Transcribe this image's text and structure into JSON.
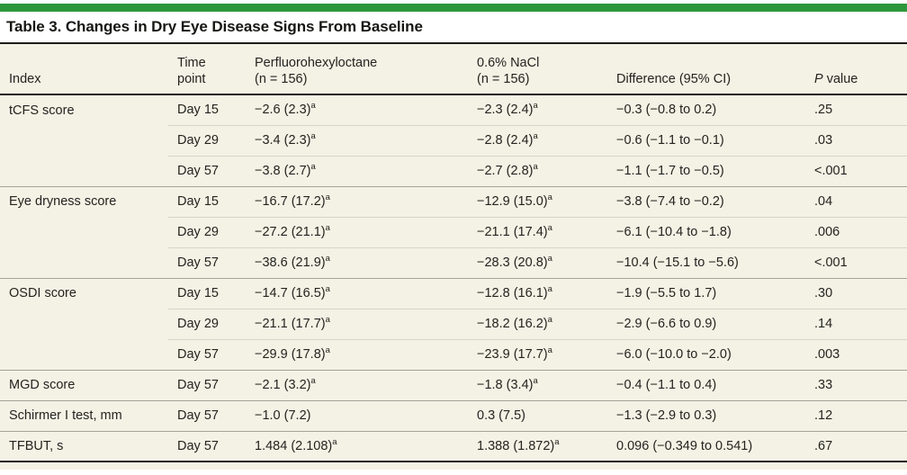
{
  "colors": {
    "accent_green": "#2e973c",
    "table_bg": "#f4f1e5",
    "rule_dark": "#1c1c1c",
    "line_light": "#d9d4c3",
    "line_group": "#a3a396",
    "text": "#24241f"
  },
  "title": "Table 3. Changes in Dry Eye Disease Signs From Baseline",
  "table": {
    "headers": [
      {
        "id": "index",
        "lines": [
          "Index"
        ]
      },
      {
        "id": "time-point",
        "lines": [
          "Time",
          "point"
        ]
      },
      {
        "id": "perfluorohexyloctane",
        "lines": [
          "Perfluorohexyloctane",
          "(n = 156)"
        ]
      },
      {
        "id": "nacl",
        "lines": [
          "0.6% NaCl",
          "(n = 156)"
        ]
      },
      {
        "id": "difference",
        "lines": [
          "Difference (95% CI)"
        ]
      },
      {
        "id": "p-value",
        "lines": [
          "P value"
        ],
        "italic_first_word": true
      }
    ],
    "rows": [
      {
        "index": "tCFS score",
        "group_start": true,
        "time": "Day 15",
        "drug": "−2.6 (2.3)^a",
        "nacl": "−2.3 (2.4)^a",
        "diff": "−0.3 (−0.8 to 0.2)",
        "p": ".25"
      },
      {
        "index": "",
        "group_start": false,
        "time": "Day 29",
        "drug": "−3.4 (2.3)^a",
        "nacl": "−2.8 (2.4)^a",
        "diff": "−0.6 (−1.1 to −0.1)",
        "p": ".03"
      },
      {
        "index": "",
        "group_start": false,
        "time": "Day 57",
        "drug": "−3.8 (2.7)^a",
        "nacl": "−2.7 (2.8)^a",
        "diff": "−1.1 (−1.7 to −0.5)",
        "p": "<.001"
      },
      {
        "index": "Eye dryness score",
        "group_start": true,
        "time": "Day 15",
        "drug": "−16.7 (17.2)^a",
        "nacl": "−12.9 (15.0)^a",
        "diff": "−3.8 (−7.4 to −0.2)",
        "p": ".04"
      },
      {
        "index": "",
        "group_start": false,
        "time": "Day 29",
        "drug": "−27.2 (21.1)^a",
        "nacl": "−21.1 (17.4)^a",
        "diff": "−6.1 (−10.4 to −1.8)",
        "p": ".006"
      },
      {
        "index": "",
        "group_start": false,
        "time": "Day 57",
        "drug": "−38.6 (21.9)^a",
        "nacl": "−28.3 (20.8)^a",
        "diff": "−10.4 (−15.1 to −5.6)",
        "p": "<.001"
      },
      {
        "index": "OSDI score",
        "group_start": true,
        "time": "Day 15",
        "drug": "−14.7 (16.5)^a",
        "nacl": "−12.8 (16.1)^a",
        "diff": "−1.9 (−5.5 to 1.7)",
        "p": ".30"
      },
      {
        "index": "",
        "group_start": false,
        "time": "Day 29",
        "drug": "−21.1 (17.7)^a",
        "nacl": "−18.2 (16.2)^a",
        "diff": "−2.9 (−6.6 to 0.9)",
        "p": ".14"
      },
      {
        "index": "",
        "group_start": false,
        "time": "Day 57",
        "drug": "−29.9 (17.8)^a",
        "nacl": "−23.9 (17.7)^a",
        "diff": "−6.0 (−10.0 to −2.0)",
        "p": ".003"
      },
      {
        "index": "MGD score",
        "group_start": true,
        "time": "Day 57",
        "drug": "−2.1 (3.2)^a",
        "nacl": "−1.8 (3.4)^a",
        "diff": "−0.4 (−1.1 to 0.4)",
        "p": ".33"
      },
      {
        "index": "Schirmer I test, mm",
        "group_start": true,
        "time": "Day 57",
        "drug": "−1.0 (7.2)",
        "nacl": "0.3 (7.5)",
        "diff": "−1.3 (−2.9 to 0.3)",
        "p": ".12"
      },
      {
        "index": "TFBUT, s",
        "group_start": true,
        "time": "Day 57",
        "drug": "1.484 (2.108)^a",
        "nacl": "1.388 (1.872)^a",
        "diff": "0.096 (−0.349 to 0.541)",
        "p": ".67"
      }
    ]
  }
}
